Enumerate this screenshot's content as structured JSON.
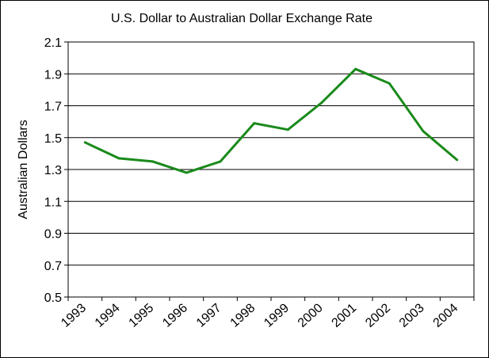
{
  "chart_data": {
    "type": "line",
    "title": "U.S. Dollar to Australian Dollar Exchange Rate",
    "xlabel": "",
    "ylabel": "Australian Dollars",
    "categories": [
      "1993",
      "1994",
      "1995",
      "1996",
      "1997",
      "1998",
      "1999",
      "2000",
      "2001",
      "2002",
      "2003",
      "2004"
    ],
    "series": [
      {
        "values": [
          1.47,
          1.37,
          1.35,
          1.28,
          1.35,
          1.59,
          1.55,
          1.72,
          1.93,
          1.84,
          1.54,
          1.36
        ],
        "color": "#1a8a1a"
      }
    ],
    "ylim": [
      0.5,
      2.1
    ],
    "yticks": [
      "0.5",
      "0.7",
      "0.9",
      "1.1",
      "1.3",
      "1.5",
      "1.7",
      "1.9",
      "2.1"
    ],
    "grid": "horizontal",
    "legend": "none",
    "plot_background": "#ffffff",
    "gridline_color": "#000000"
  }
}
